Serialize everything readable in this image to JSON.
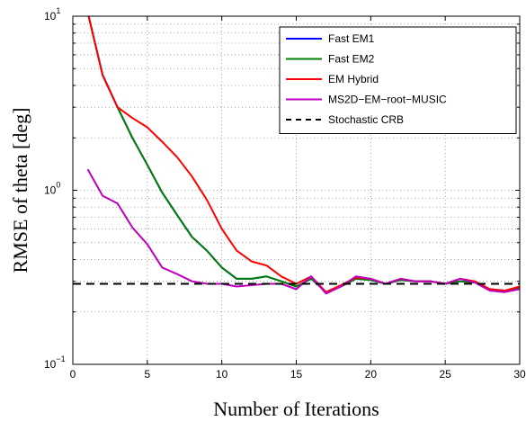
{
  "chart_data": {
    "type": "line",
    "xlabel": "Number of Iterations",
    "ylabel": "RMSE of theta [deg]",
    "xlim": [
      0,
      30
    ],
    "ylim": [
      0.1,
      10
    ],
    "yscale": "log",
    "grid": true,
    "legend": "top-right",
    "x_ticks": [
      "0",
      "5",
      "10",
      "15",
      "20",
      "25",
      "30"
    ],
    "x_tick_values": [
      0,
      5,
      10,
      15,
      20,
      25,
      30
    ],
    "y_ticks": [
      {
        "value": 0.1,
        "base": "10",
        "exp": "−1"
      },
      {
        "value": 1,
        "base": "10",
        "exp": "0"
      },
      {
        "value": 10,
        "base": "10",
        "exp": "1"
      }
    ],
    "series": [
      {
        "name": "Fast EM1",
        "color": "#0000ff",
        "dash": "",
        "x": [
          1,
          2,
          3,
          4,
          5,
          6,
          7,
          8,
          9,
          10,
          11,
          12,
          13,
          14,
          15,
          16,
          17,
          18,
          19,
          20,
          21,
          22,
          23,
          24,
          25,
          26,
          27,
          28,
          29,
          30
        ],
        "y": [
          10.5,
          4.6,
          3.0,
          2.0,
          1.4,
          0.97,
          0.72,
          0.54,
          0.45,
          0.36,
          0.31,
          0.31,
          0.32,
          0.3,
          0.28,
          0.31,
          0.26,
          0.28,
          0.31,
          0.305,
          0.29,
          0.305,
          0.3,
          0.3,
          0.29,
          0.3,
          0.295,
          0.27,
          0.265,
          0.275
        ]
      },
      {
        "name": "Fast EM2",
        "color": "#008000",
        "dash": "",
        "x": [
          1,
          2,
          3,
          4,
          5,
          6,
          7,
          8,
          9,
          10,
          11,
          12,
          13,
          14,
          15,
          16,
          17,
          18,
          19,
          20,
          21,
          22,
          23,
          24,
          25,
          26,
          27,
          28,
          29,
          30
        ],
        "y": [
          10.5,
          4.6,
          3.0,
          2.0,
          1.4,
          0.97,
          0.72,
          0.54,
          0.45,
          0.36,
          0.31,
          0.31,
          0.32,
          0.3,
          0.28,
          0.31,
          0.26,
          0.28,
          0.31,
          0.305,
          0.29,
          0.305,
          0.3,
          0.3,
          0.29,
          0.3,
          0.295,
          0.27,
          0.265,
          0.275
        ]
      },
      {
        "name": "EM Hybrid",
        "color": "#ff0000",
        "dash": "",
        "x": [
          1,
          2,
          3,
          4,
          5,
          6,
          7,
          8,
          9,
          10,
          11,
          12,
          13,
          14,
          15,
          16,
          17,
          18,
          19,
          20,
          21,
          22,
          23,
          24,
          25,
          26,
          27,
          28,
          29,
          30
        ],
        "y": [
          10.5,
          4.6,
          3.0,
          2.6,
          2.3,
          1.9,
          1.55,
          1.2,
          0.88,
          0.6,
          0.45,
          0.39,
          0.37,
          0.32,
          0.29,
          0.32,
          0.26,
          0.285,
          0.315,
          0.31,
          0.29,
          0.31,
          0.3,
          0.3,
          0.29,
          0.31,
          0.3,
          0.27,
          0.265,
          0.28
        ]
      },
      {
        "name": "MS2D−EM−root−MUSIC",
        "color": "#bf00bf",
        "dash": "",
        "x": [
          1,
          2,
          3,
          4,
          5,
          6,
          7,
          8,
          9,
          10,
          11,
          12,
          13,
          14,
          15,
          16,
          17,
          18,
          19,
          20,
          21,
          22,
          23,
          24,
          25,
          26,
          27,
          28,
          29,
          30
        ],
        "y": [
          1.32,
          0.93,
          0.84,
          0.61,
          0.49,
          0.36,
          0.33,
          0.3,
          0.29,
          0.29,
          0.28,
          0.285,
          0.29,
          0.29,
          0.27,
          0.32,
          0.255,
          0.28,
          0.32,
          0.31,
          0.29,
          0.31,
          0.3,
          0.3,
          0.29,
          0.31,
          0.295,
          0.265,
          0.26,
          0.27
        ]
      },
      {
        "name": "Stochastic CRB",
        "color": "#000000",
        "dash": "9,6",
        "x": [
          0,
          30
        ],
        "y": [
          0.29,
          0.29
        ]
      }
    ]
  }
}
